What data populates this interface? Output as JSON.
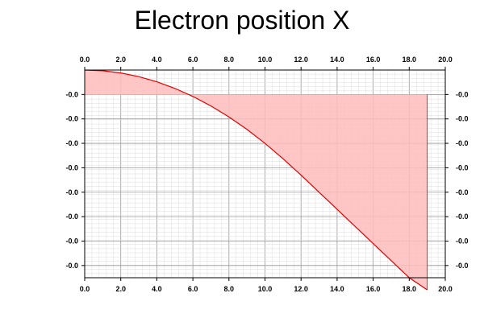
{
  "chart_data": {
    "type": "area",
    "title": "Electron position X",
    "xlabel": "",
    "ylabel": "",
    "xlim": [
      0,
      20
    ],
    "ylim": [
      -0.0075,
      0.001
    ],
    "x_ticks": [
      "0.0",
      "2.0",
      "4.0",
      "6.0",
      "8.0",
      "10.0",
      "12.0",
      "14.0",
      "16.0",
      "18.0",
      "20.0"
    ],
    "y_tick_values": [
      0,
      -0.001,
      -0.002,
      -0.003,
      -0.004,
      -0.005,
      -0.006,
      -0.007
    ],
    "y_ticks": [
      "-0.0",
      "-0.0",
      "-0.0",
      "-0.0",
      "-0.0",
      "-0.0",
      "-0.0",
      "-0.0"
    ],
    "grid": true,
    "line_color": "#e00000",
    "fill_color": "#ffbcbc",
    "series": [
      {
        "x": [
          0,
          1,
          2,
          3,
          4,
          5,
          6,
          7,
          8,
          9,
          10,
          11,
          12,
          13,
          14,
          15,
          16,
          17,
          18,
          19
        ],
        "y": [
          0.001,
          0.00097,
          0.00088,
          0.00073,
          0.00052,
          0.00025,
          -8e-05,
          -0.00047,
          -0.00092,
          -0.00143,
          -0.002,
          -0.00263,
          -0.0033,
          -0.004,
          -0.0047,
          -0.0054,
          -0.0061,
          -0.0068,
          -0.0075,
          -0.008
        ]
      }
    ]
  }
}
